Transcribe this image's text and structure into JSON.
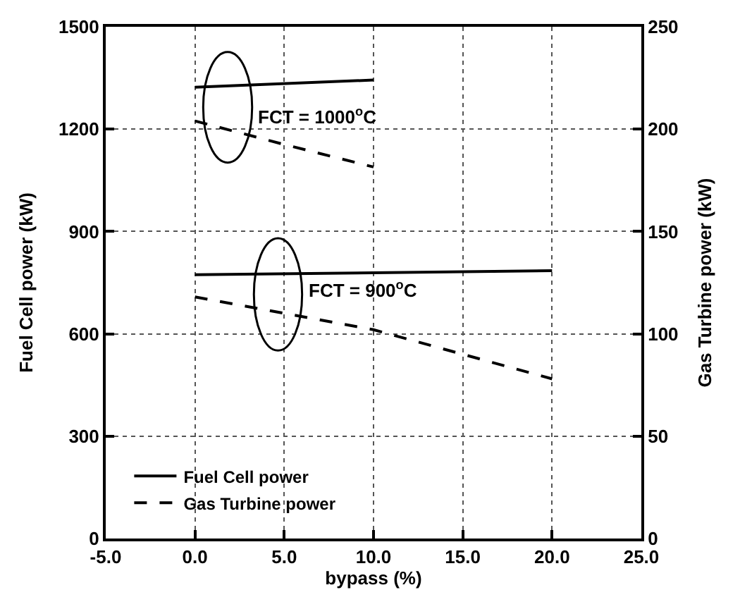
{
  "chart_data": {
    "type": "line",
    "xlabel": "bypass (%)",
    "ylabel": "Fuel Cell power (kW)",
    "y2label": "Gas Turbine power (kW)",
    "xlim": [
      -5,
      25
    ],
    "xticks": [
      {
        "value": -5,
        "label": "-5.0"
      },
      {
        "value": 0,
        "label": "0.0"
      },
      {
        "value": 5,
        "label": "5.0"
      },
      {
        "value": 10,
        "label": "10.0"
      },
      {
        "value": 15,
        "label": "15.0"
      },
      {
        "value": 20,
        "label": "20.0"
      },
      {
        "value": 25,
        "label": "25.0"
      }
    ],
    "ylim": [
      0,
      1500
    ],
    "yticks": [
      0,
      300,
      600,
      900,
      1200,
      1500
    ],
    "y2lim": [
      0,
      250
    ],
    "y2ticks": [
      0,
      50,
      100,
      150,
      200,
      250
    ],
    "grid": true,
    "legend": "bottom left",
    "series": [
      {
        "name": "Fuel Cell power",
        "color": "#000000",
        "line_style": "solid",
        "x": [
          0,
          10
        ],
        "values": [
          1323,
          1344
        ]
      },
      {
        "name": "Gas Turbine power",
        "color": "#000000",
        "line_style": "dashed",
        "axis": "y2",
        "x": [
          0,
          5,
          10
        ],
        "values": [
          204,
          192.5,
          181.5
        ]
      },
      {
        "color": "#000000",
        "line_style": "solid",
        "x": [
          0,
          20
        ],
        "values": [
          773,
          785
        ]
      },
      {
        "color": "#000000",
        "line_style": "dashed",
        "axis": "y2",
        "x": [
          0,
          5,
          10,
          15,
          20
        ],
        "values": [
          118,
          110,
          102,
          90,
          78
        ]
      }
    ],
    "annotations": [
      "FCT = 1000$^{o}$C",
      "FCT = 900$^{o}$C"
    ]
  }
}
